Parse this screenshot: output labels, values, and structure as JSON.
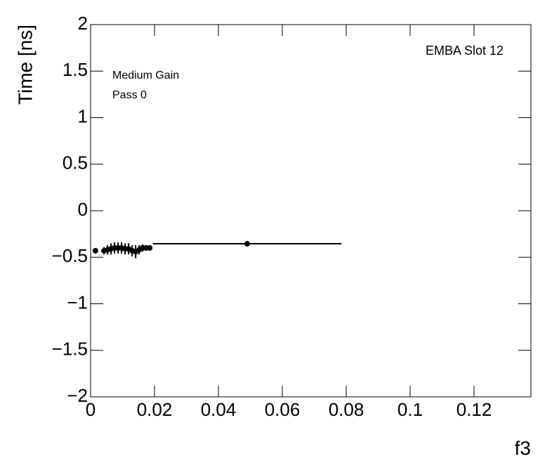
{
  "chart_data": {
    "type": "scatter",
    "y_label": "Time [ns]",
    "x_label": "f3",
    "annotations": [
      "EMBA Slot 12",
      "Medium Gain",
      "Pass 0"
    ],
    "xlim": [
      0,
      0.1378
    ],
    "ylim": [
      -2,
      2
    ],
    "xticks": [
      0,
      0.02,
      0.04,
      0.06,
      0.08,
      0.1,
      0.12
    ],
    "yticks": [
      {
        "value": -2,
        "label": "−2"
      },
      {
        "value": -1.5,
        "label": "−1.5"
      },
      {
        "value": -1,
        "label": "−1"
      },
      {
        "value": -0.5,
        "label": "−0.5"
      },
      0,
      0.5,
      1,
      1.5,
      2
    ],
    "color": "#000000",
    "x": [
      0.0015,
      0.0042,
      0.0053,
      0.0064,
      0.0075,
      0.0086,
      0.0097,
      0.0108,
      0.0119,
      0.013,
      0.0141,
      0.0152,
      0.0163,
      0.0174,
      0.0185,
      0.049
    ],
    "values": [
      -0.43,
      -0.43,
      -0.42,
      -0.41,
      -0.4,
      -0.4,
      -0.4,
      -0.41,
      -0.41,
      -0.43,
      -0.44,
      -0.42,
      -0.4,
      -0.4,
      -0.4,
      -0.355
    ],
    "xerr": [
      0.0006,
      0.0005,
      0.0005,
      0.0005,
      0.0005,
      0.0005,
      0.0005,
      0.0005,
      0.0005,
      0.0005,
      0.0005,
      0.0005,
      0.0005,
      0.0005,
      0.0006,
      0.0295
    ],
    "yerr": [
      0.03,
      0.04,
      0.05,
      0.06,
      0.06,
      0.06,
      0.06,
      0.06,
      0.06,
      0.06,
      0.07,
      0.05,
      0.04,
      0.03,
      0.03,
      0.01
    ]
  }
}
